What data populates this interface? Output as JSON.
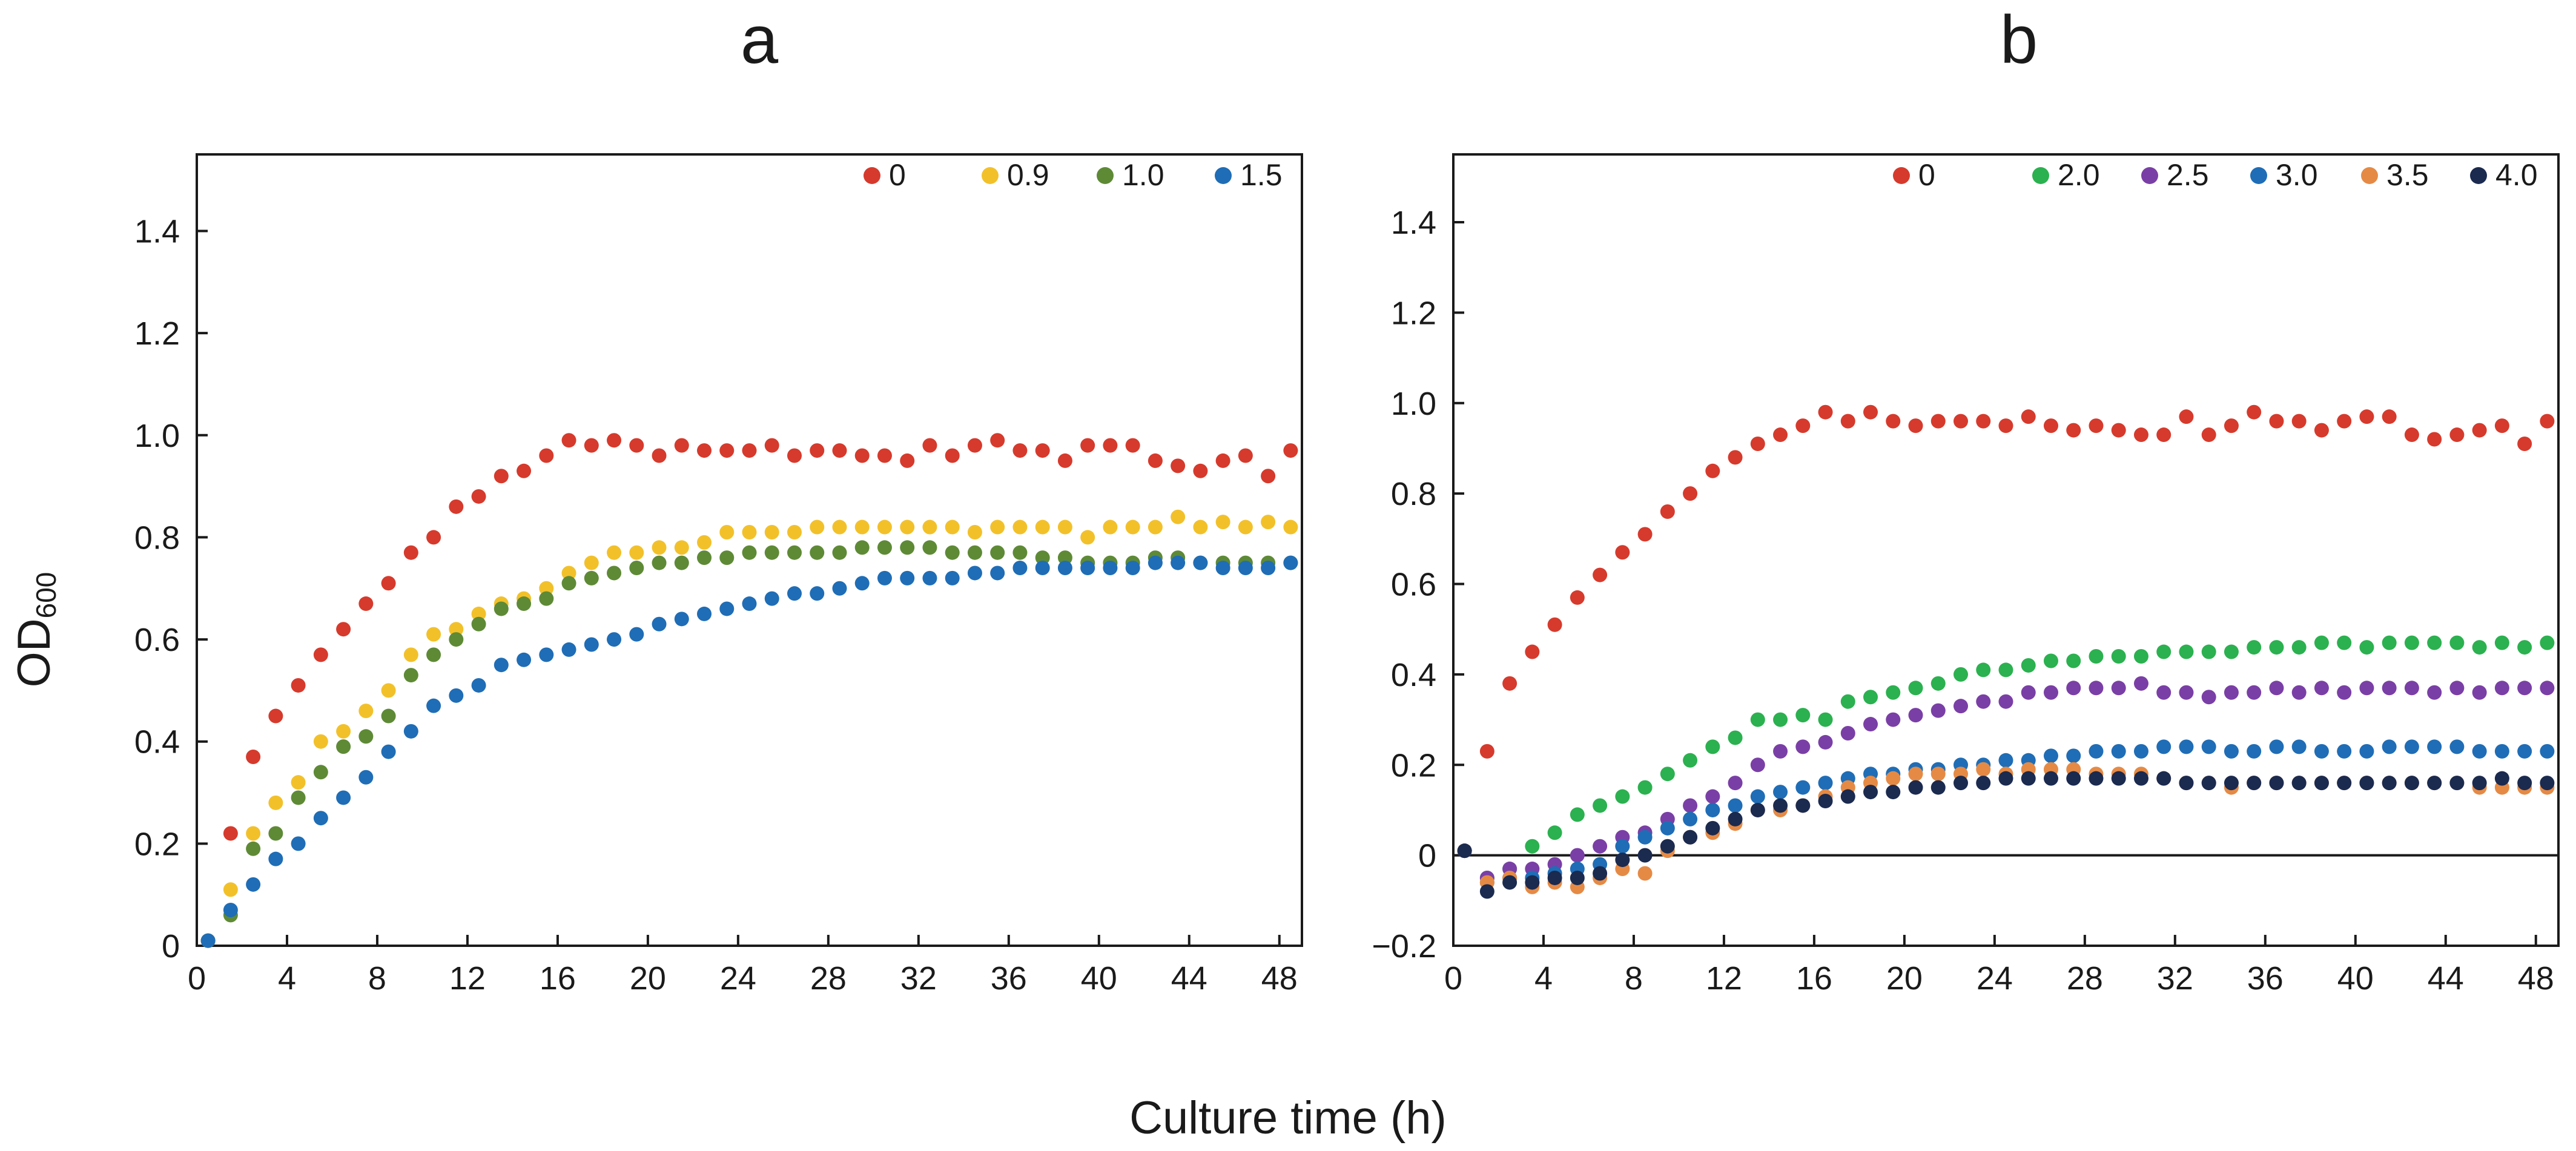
{
  "xlabel": "Culture time (h)",
  "ylabel": {
    "main": "OD",
    "subscript": "600"
  },
  "colors": {
    "0": "#d63a2c",
    "0.9": "#f2c12a",
    "1.0": "#5e8a36",
    "1.5": "#1f6db6",
    "2.0": "#2bb14f",
    "2.5": "#7a3fa6",
    "3.0": "#1f6db6",
    "3.5": "#e58a45",
    "4.0": "#1b2a4f"
  },
  "chart_data": [
    {
      "panel": "a",
      "title": "a",
      "type": "scatter",
      "xlim": [
        0,
        49
      ],
      "ylim": [
        0,
        1.55
      ],
      "xticks": [
        "0",
        "4",
        "8",
        "12",
        "16",
        "20",
        "24",
        "28",
        "32",
        "36",
        "40",
        "44",
        "48"
      ],
      "yticks": [
        "0",
        "0.2",
        "0.4",
        "0.6",
        "0.8",
        "1.0",
        "1.2",
        "1.4"
      ],
      "zero_line": false,
      "x": [
        0.5,
        1.5,
        2.5,
        3.5,
        4.5,
        5.5,
        6.5,
        7.5,
        8.5,
        9.5,
        10.5,
        11.5,
        12.5,
        13.5,
        14.5,
        15.5,
        16.5,
        17.5,
        18.5,
        19.5,
        20.5,
        21.5,
        22.5,
        23.5,
        24.5,
        25.5,
        26.5,
        27.5,
        28.5,
        29.5,
        30.5,
        31.5,
        32.5,
        33.5,
        34.5,
        35.5,
        36.5,
        37.5,
        38.5,
        39.5,
        40.5,
        41.5,
        42.5,
        43.5,
        44.5,
        45.5,
        46.5,
        47.5,
        48.5
      ],
      "series": [
        {
          "name": "0",
          "color_key": "0",
          "values": [
            0.01,
            0.22,
            0.37,
            0.45,
            0.51,
            0.57,
            0.62,
            0.67,
            0.71,
            0.77,
            0.8,
            0.86,
            0.88,
            0.92,
            0.93,
            0.96,
            0.99,
            0.98,
            0.99,
            0.98,
            0.96,
            0.98,
            0.97,
            0.97,
            0.97,
            0.98,
            0.96,
            0.97,
            0.97,
            0.96,
            0.96,
            0.95,
            0.98,
            0.96,
            0.98,
            0.99,
            0.97,
            0.97,
            0.95,
            0.98,
            0.98,
            0.98,
            0.95,
            0.94,
            0.93,
            0.95,
            0.96,
            0.92,
            0.97
          ]
        },
        {
          "name": "0.9",
          "color_key": "0.9",
          "values": [
            0.01,
            0.11,
            0.22,
            0.28,
            0.32,
            0.4,
            0.42,
            0.46,
            0.5,
            0.57,
            0.61,
            0.62,
            0.65,
            0.67,
            0.68,
            0.7,
            0.73,
            0.75,
            0.77,
            0.77,
            0.78,
            0.78,
            0.79,
            0.81,
            0.81,
            0.81,
            0.81,
            0.82,
            0.82,
            0.82,
            0.82,
            0.82,
            0.82,
            0.82,
            0.81,
            0.82,
            0.82,
            0.82,
            0.82,
            0.8,
            0.82,
            0.82,
            0.82,
            0.84,
            0.82,
            0.83,
            0.82,
            0.83,
            0.82
          ]
        },
        {
          "name": "1.0",
          "color_key": "1.0",
          "values": [
            0.01,
            0.06,
            0.19,
            0.22,
            0.29,
            0.34,
            0.39,
            0.41,
            0.45,
            0.53,
            0.57,
            0.6,
            0.63,
            0.66,
            0.67,
            0.68,
            0.71,
            0.72,
            0.73,
            0.74,
            0.75,
            0.75,
            0.76,
            0.76,
            0.77,
            0.77,
            0.77,
            0.77,
            0.77,
            0.78,
            0.78,
            0.78,
            0.78,
            0.77,
            0.77,
            0.77,
            0.77,
            0.76,
            0.76,
            0.75,
            0.75,
            0.75,
            0.76,
            0.76,
            0.75,
            0.75,
            0.75,
            0.75,
            0.75
          ]
        },
        {
          "name": "1.5",
          "color_key": "1.5",
          "values": [
            0.01,
            0.07,
            0.12,
            0.17,
            0.2,
            0.25,
            0.29,
            0.33,
            0.38,
            0.42,
            0.47,
            0.49,
            0.51,
            0.55,
            0.56,
            0.57,
            0.58,
            0.59,
            0.6,
            0.61,
            0.63,
            0.64,
            0.65,
            0.66,
            0.67,
            0.68,
            0.69,
            0.69,
            0.7,
            0.71,
            0.72,
            0.72,
            0.72,
            0.72,
            0.73,
            0.73,
            0.74,
            0.74,
            0.74,
            0.74,
            0.74,
            0.74,
            0.75,
            0.75,
            0.75,
            0.74,
            0.74,
            0.74,
            0.75
          ]
        }
      ]
    },
    {
      "panel": "b",
      "title": "b",
      "type": "scatter",
      "xlim": [
        0,
        49
      ],
      "ylim": [
        -0.2,
        1.55
      ],
      "xticks": [
        "0",
        "4",
        "8",
        "12",
        "16",
        "20",
        "24",
        "28",
        "32",
        "36",
        "40",
        "44",
        "48"
      ],
      "yticks": [
        "−0.2",
        "0",
        "0.2",
        "0.4",
        "0.6",
        "0.8",
        "1.0",
        "1.2",
        "1.4"
      ],
      "zero_line": true,
      "x": [
        0.5,
        1.5,
        2.5,
        3.5,
        4.5,
        5.5,
        6.5,
        7.5,
        8.5,
        9.5,
        10.5,
        11.5,
        12.5,
        13.5,
        14.5,
        15.5,
        16.5,
        17.5,
        18.5,
        19.5,
        20.5,
        21.5,
        22.5,
        23.5,
        24.5,
        25.5,
        26.5,
        27.5,
        28.5,
        29.5,
        30.5,
        31.5,
        32.5,
        33.5,
        34.5,
        35.5,
        36.5,
        37.5,
        38.5,
        39.5,
        40.5,
        41.5,
        42.5,
        43.5,
        44.5,
        45.5,
        46.5,
        47.5,
        48.5
      ],
      "series": [
        {
          "name": "0",
          "color_key": "0",
          "values": [
            0.01,
            0.23,
            0.38,
            0.45,
            0.51,
            0.57,
            0.62,
            0.67,
            0.71,
            0.76,
            0.8,
            0.85,
            0.88,
            0.91,
            0.93,
            0.95,
            0.98,
            0.96,
            0.98,
            0.96,
            0.95,
            0.96,
            0.96,
            0.96,
            0.95,
            0.97,
            0.95,
            0.94,
            0.95,
            0.94,
            0.93,
            0.93,
            0.97,
            0.93,
            0.95,
            0.98,
            0.96,
            0.96,
            0.94,
            0.96,
            0.97,
            0.97,
            0.93,
            0.92,
            0.93,
            0.94,
            0.95,
            0.91,
            0.96
          ]
        },
        {
          "name": "2.0",
          "color_key": "2.0",
          "values": [
            0.01,
            -0.05,
            -0.03,
            0.02,
            0.05,
            0.09,
            0.11,
            0.13,
            0.15,
            0.18,
            0.21,
            0.24,
            0.26,
            0.3,
            0.3,
            0.31,
            0.3,
            0.34,
            0.35,
            0.36,
            0.37,
            0.38,
            0.4,
            0.41,
            0.41,
            0.42,
            0.43,
            0.43,
            0.44,
            0.44,
            0.44,
            0.45,
            0.45,
            0.45,
            0.45,
            0.46,
            0.46,
            0.46,
            0.47,
            0.47,
            0.46,
            0.47,
            0.47,
            0.47,
            0.47,
            0.46,
            0.47,
            0.46,
            0.47
          ]
        },
        {
          "name": "2.5",
          "color_key": "2.5",
          "values": [
            0.01,
            -0.05,
            -0.03,
            -0.03,
            -0.02,
            0.0,
            0.02,
            0.04,
            0.05,
            0.08,
            0.11,
            0.13,
            0.16,
            0.2,
            0.23,
            0.24,
            0.25,
            0.27,
            0.29,
            0.3,
            0.31,
            0.32,
            0.33,
            0.34,
            0.34,
            0.36,
            0.36,
            0.37,
            0.37,
            0.37,
            0.38,
            0.36,
            0.36,
            0.35,
            0.36,
            0.36,
            0.37,
            0.36,
            0.37,
            0.36,
            0.37,
            0.37,
            0.37,
            0.36,
            0.37,
            0.36,
            0.37,
            0.37,
            0.37
          ]
        },
        {
          "name": "3.0",
          "color_key": "3.0",
          "values": [
            0.01,
            -0.06,
            -0.05,
            -0.05,
            -0.04,
            -0.03,
            -0.02,
            0.02,
            0.04,
            0.06,
            0.08,
            0.1,
            0.11,
            0.13,
            0.14,
            0.15,
            0.16,
            0.17,
            0.18,
            0.18,
            0.19,
            0.19,
            0.2,
            0.2,
            0.21,
            0.21,
            0.22,
            0.22,
            0.23,
            0.23,
            0.23,
            0.24,
            0.24,
            0.24,
            0.23,
            0.23,
            0.24,
            0.24,
            0.23,
            0.23,
            0.23,
            0.24,
            0.24,
            0.24,
            0.24,
            0.23,
            0.23,
            0.23,
            0.23
          ]
        },
        {
          "name": "3.5",
          "color_key": "3.5",
          "values": [
            0.01,
            -0.06,
            -0.05,
            -0.07,
            -0.06,
            -0.07,
            -0.05,
            -0.03,
            -0.04,
            0.01,
            0.04,
            0.05,
            0.07,
            0.1,
            0.1,
            0.11,
            0.13,
            0.15,
            0.16,
            0.17,
            0.18,
            0.18,
            0.18,
            0.19,
            0.18,
            0.19,
            0.19,
            0.19,
            0.18,
            0.18,
            0.18,
            0.17,
            0.16,
            0.16,
            0.15,
            0.16,
            0.16,
            0.16,
            0.16,
            0.16,
            0.16,
            0.16,
            0.16,
            0.16,
            0.16,
            0.15,
            0.15,
            0.15,
            0.15
          ]
        },
        {
          "name": "4.0",
          "color_key": "4.0",
          "values": [
            0.01,
            -0.08,
            -0.06,
            -0.06,
            -0.05,
            -0.05,
            -0.04,
            -0.01,
            0.0,
            0.02,
            0.04,
            0.06,
            0.08,
            0.1,
            0.11,
            0.11,
            0.12,
            0.13,
            0.14,
            0.14,
            0.15,
            0.15,
            0.16,
            0.16,
            0.17,
            0.17,
            0.17,
            0.17,
            0.17,
            0.17,
            0.17,
            0.17,
            0.16,
            0.16,
            0.16,
            0.16,
            0.16,
            0.16,
            0.16,
            0.16,
            0.16,
            0.16,
            0.16,
            0.16,
            0.16,
            0.16,
            0.17,
            0.16,
            0.16
          ]
        }
      ]
    }
  ]
}
